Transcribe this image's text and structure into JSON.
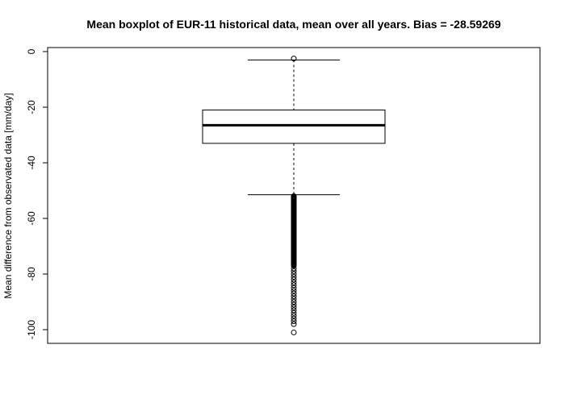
{
  "chart_data": {
    "type": "boxplot",
    "title": "Mean boxplot of EUR-11 historical data, mean over all years. Bias = -28.59269",
    "xlabel": "",
    "ylabel": "Mean difference from observated data [mm/day]",
    "ylim": [
      -105,
      0.5
    ],
    "yticks": [
      0,
      -20,
      -40,
      -60,
      -80,
      -100
    ],
    "grid": false,
    "box": {
      "upper_whisker": -3,
      "q3": -21,
      "median": -26.5,
      "q1": -33,
      "lower_whisker": -51.5
    },
    "outliers_top": [
      -2.5
    ],
    "outliers_dense_range": [
      -52,
      -77
    ],
    "outliers_sparse": [
      -78,
      -79,
      -80,
      -81,
      -82,
      -83,
      -84,
      -85,
      -86,
      -87,
      -88,
      -89,
      -90,
      -91,
      -92,
      -93,
      -94,
      -95,
      -96,
      -97,
      -98,
      -101
    ]
  }
}
